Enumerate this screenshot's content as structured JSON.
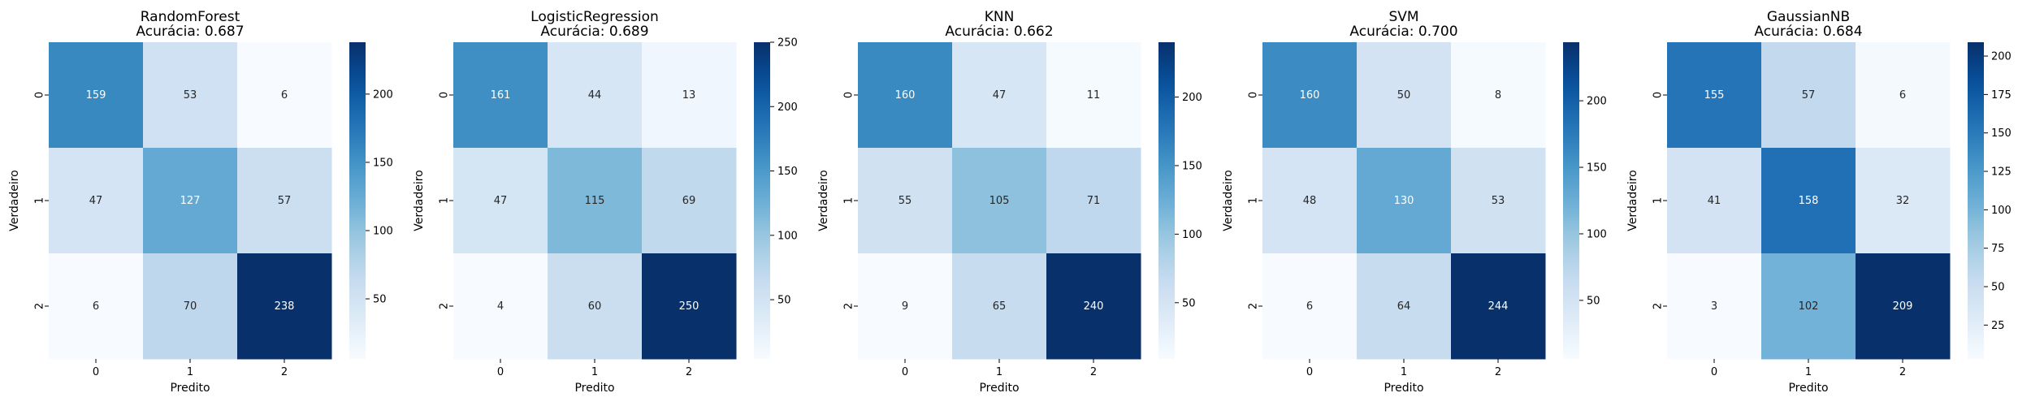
{
  "chart_data": [
    {
      "type": "heatmap",
      "title": "RandomForest",
      "subtitle": "Acurácia: 0.687",
      "xlabel": "Predito",
      "ylabel": "Verdadeiro",
      "x_categories": [
        "0",
        "1",
        "2"
      ],
      "y_categories": [
        "0",
        "1",
        "2"
      ],
      "values": [
        [
          159,
          53,
          6
        ],
        [
          47,
          127,
          57
        ],
        [
          6,
          70,
          238
        ]
      ],
      "colormap": "Blues",
      "colorbar_range": [
        6,
        238
      ],
      "colorbar_ticks": [
        50,
        100,
        150,
        200
      ]
    },
    {
      "type": "heatmap",
      "title": "LogisticRegression",
      "subtitle": "Acurácia: 0.689",
      "xlabel": "Predito",
      "ylabel": "Verdadeiro",
      "x_categories": [
        "0",
        "1",
        "2"
      ],
      "y_categories": [
        "0",
        "1",
        "2"
      ],
      "values": [
        [
          161,
          44,
          13
        ],
        [
          47,
          115,
          69
        ],
        [
          4,
          60,
          250
        ]
      ],
      "colormap": "Blues",
      "colorbar_range": [
        4,
        250
      ],
      "colorbar_ticks": [
        50,
        100,
        150,
        200,
        250
      ]
    },
    {
      "type": "heatmap",
      "title": "KNN",
      "subtitle": "Acurácia: 0.662",
      "xlabel": "Predito",
      "ylabel": "Verdadeiro",
      "x_categories": [
        "0",
        "1",
        "2"
      ],
      "y_categories": [
        "0",
        "1",
        "2"
      ],
      "values": [
        [
          160,
          47,
          11
        ],
        [
          55,
          105,
          71
        ],
        [
          9,
          65,
          240
        ]
      ],
      "colormap": "Blues",
      "colorbar_range": [
        9,
        240
      ],
      "colorbar_ticks": [
        50,
        100,
        150,
        200
      ]
    },
    {
      "type": "heatmap",
      "title": "SVM",
      "subtitle": "Acurácia: 0.700",
      "xlabel": "Predito",
      "ylabel": "Verdadeiro",
      "x_categories": [
        "0",
        "1",
        "2"
      ],
      "y_categories": [
        "0",
        "1",
        "2"
      ],
      "values": [
        [
          160,
          50,
          8
        ],
        [
          48,
          130,
          53
        ],
        [
          6,
          64,
          244
        ]
      ],
      "colormap": "Blues",
      "colorbar_range": [
        6,
        244
      ],
      "colorbar_ticks": [
        50,
        100,
        150,
        200
      ]
    },
    {
      "type": "heatmap",
      "title": "GaussianNB",
      "subtitle": "Acurácia: 0.684",
      "xlabel": "Predito",
      "ylabel": "Verdadeiro",
      "x_categories": [
        "0",
        "1",
        "2"
      ],
      "y_categories": [
        "0",
        "1",
        "2"
      ],
      "values": [
        [
          155,
          57,
          6
        ],
        [
          41,
          158,
          32
        ],
        [
          3,
          102,
          209
        ]
      ],
      "colormap": "Blues",
      "colorbar_range": [
        3,
        209
      ],
      "colorbar_ticks": [
        25,
        50,
        75,
        100,
        125,
        150,
        175,
        200
      ]
    }
  ]
}
